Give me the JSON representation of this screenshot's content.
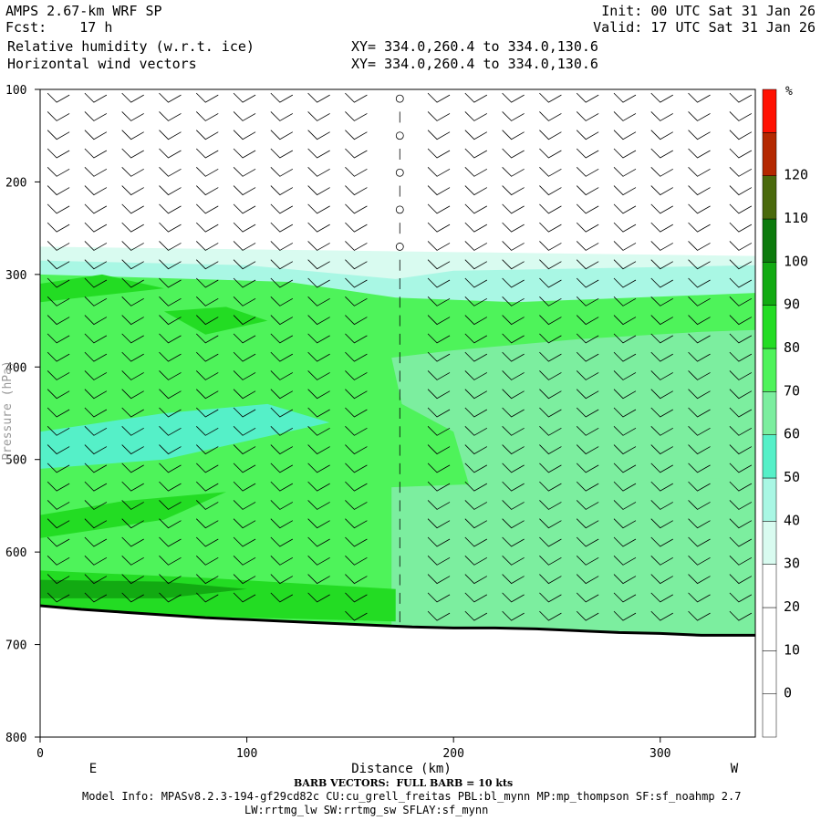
{
  "header": {
    "line1_left": "AMPS 2.67-km WRF SP",
    "line2_left": "Fcst:    17 h",
    "line3_left": "Relative humidity (w.r.t. ice)",
    "line4_left": "Horizontal wind vectors",
    "line1_right": "Init: 00 UTC Sat 31 Jan 26",
    "line2_right": "Valid: 17 UTC Sat 31 Jan 26",
    "xy1": "XY= 334.0,260.4 to 334.0,130.6",
    "xy2": "XY= 334.0,260.4 to 334.0,130.6"
  },
  "footer": {
    "barb": "BARB VECTORS:  FULL BARB = 10 kts",
    "model1": "Model Info: MPASv8.2.3-194-gf29cd82c CU:cu_grell_freitas PBL:bl_mynn MP:mp_thompson SF:sf_noahmp 2.7",
    "model2": "LW:rrtmg_lw SW:rrtmg_sw SFLAY:sf_mynn"
  },
  "chart_data": {
    "type": "heatmap",
    "title": "Relative humidity (w.r.t. ice)",
    "xlabel": "Distance (km)",
    "ylabel": "Pressure (hPa)",
    "xlim": [
      0,
      346
    ],
    "ylim": [
      800,
      100
    ],
    "x_ticks": [
      0,
      100,
      200,
      300
    ],
    "y_ticks": [
      100,
      200,
      300,
      400,
      500,
      600,
      700,
      800
    ],
    "end_labels": {
      "left": "E",
      "right": "W"
    },
    "colorbar": {
      "unit": "%",
      "levels": [
        0,
        10,
        20,
        30,
        40,
        50,
        60,
        70,
        80,
        90,
        100,
        110,
        120
      ],
      "colors": [
        "#ffffff",
        "#ffffff",
        "#ffffff",
        "#ffffff",
        "#d9fbf0",
        "#a9f7e4",
        "#55f0c8",
        "#7cee9f",
        "#4ef35a",
        "#23dc23",
        "#12aa12",
        "#0c7a0c",
        "#4a6a0c",
        "#b42800",
        "#ff1000"
      ]
    },
    "terrain_surface": [
      [
        0,
        658
      ],
      [
        20,
        662
      ],
      [
        40,
        665
      ],
      [
        60,
        668
      ],
      [
        80,
        671
      ],
      [
        100,
        673
      ],
      [
        120,
        675
      ],
      [
        140,
        677
      ],
      [
        160,
        679
      ],
      [
        180,
        681
      ],
      [
        200,
        682
      ],
      [
        220,
        682
      ],
      [
        240,
        683
      ],
      [
        260,
        685
      ],
      [
        280,
        687
      ],
      [
        300,
        688
      ],
      [
        320,
        690
      ],
      [
        346,
        690
      ]
    ],
    "wind_barb_levels_hPa": [
      110,
      130,
      150,
      170,
      190,
      210,
      230,
      250,
      270,
      290,
      310,
      330,
      350,
      370,
      390,
      410,
      430,
      450,
      470,
      490,
      510,
      530,
      550,
      570,
      590,
      610,
      630,
      650,
      670
    ],
    "wind_barb_columns_km": [
      8,
      26,
      44,
      62,
      80,
      98,
      116,
      134,
      152,
      174,
      192,
      210,
      228,
      246,
      264,
      282,
      300,
      318,
      338
    ],
    "dry_layer_top_hPa": 270,
    "calm_column_km": 174
  }
}
